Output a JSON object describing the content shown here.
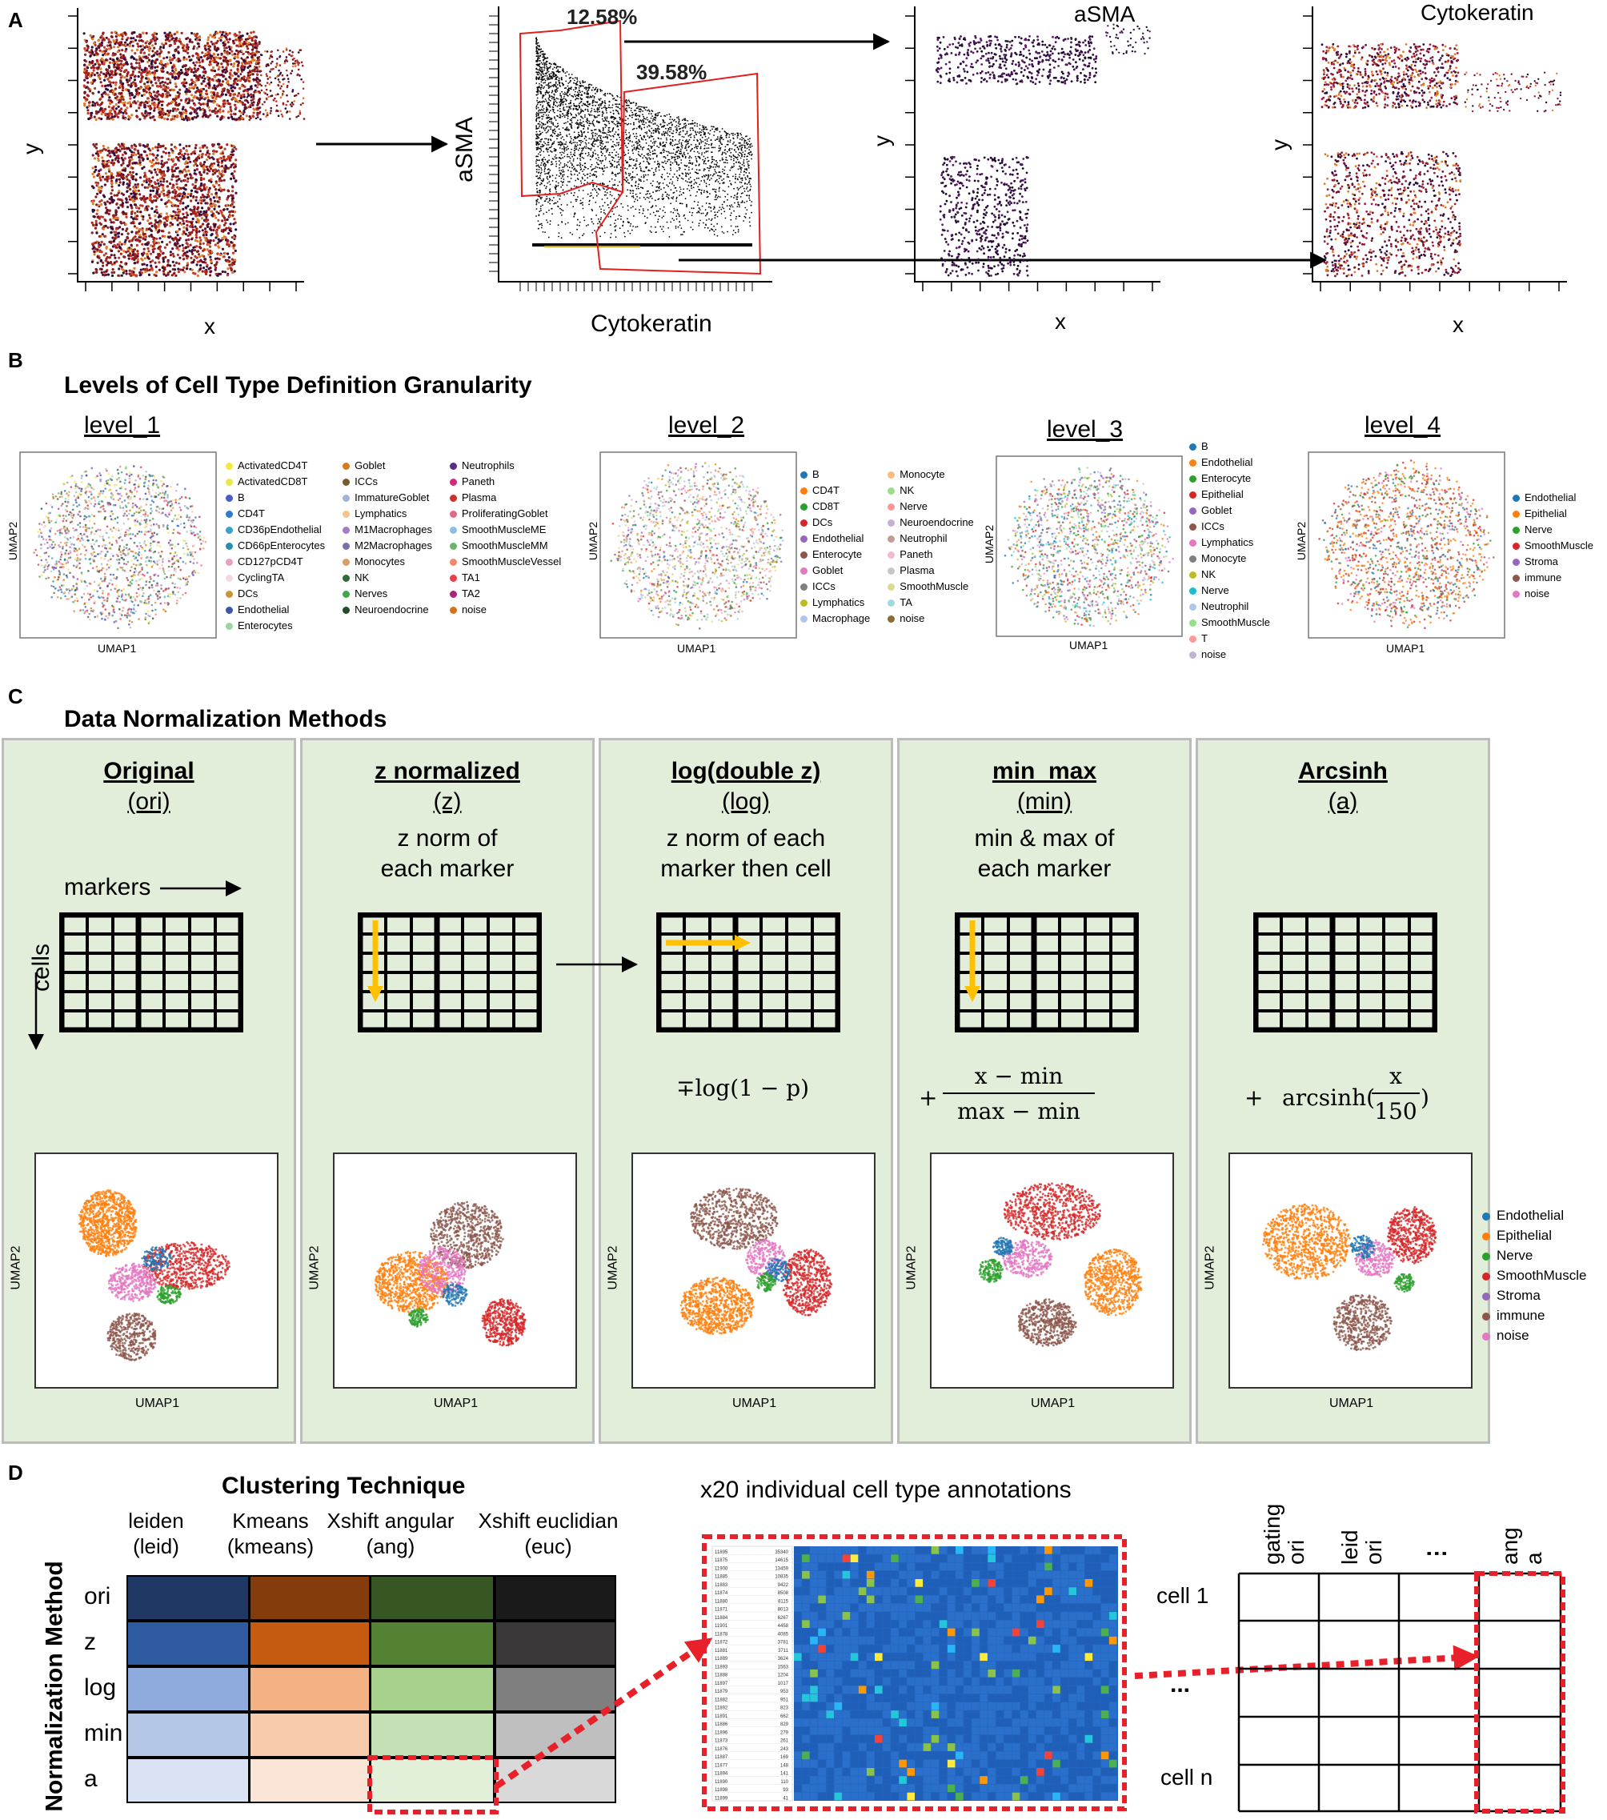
{
  "panel_a": {
    "label": "A",
    "plot1": {
      "xlabel": "x",
      "ylabel": "y"
    },
    "gate_plot": {
      "xlabel": "Cytokeratin",
      "ylabel": "aSMA",
      "gate1_pct": "12.58%",
      "gate2_pct": "39.58%"
    },
    "plot3": {
      "title": "aSMA",
      "xlabel": "x",
      "ylabel": "y"
    },
    "plot4": {
      "title": "Cytokeratin",
      "xlabel": "x",
      "ylabel": "y"
    }
  },
  "panel_b": {
    "label": "B",
    "title": "Levels of Cell Type Definition Granularity",
    "umap_xlabel": "UMAP1",
    "umap_ylabel": "UMAP2",
    "levels": [
      {
        "name": "level_1",
        "legend_cols": [
          [
            [
              "ActivatedCD4T",
              "#f5e642"
            ],
            [
              "ActivatedCD8T",
              "#e8e84a"
            ],
            [
              "B",
              "#4b5cc4"
            ],
            [
              "CD4T",
              "#2e7bd1"
            ],
            [
              "CD36pEndothelial",
              "#3aa0c8"
            ],
            [
              "CD66pEnterocytes",
              "#2a8fa8"
            ],
            [
              "CD127pCD4T",
              "#e99ec4"
            ],
            [
              "CyclingTA",
              "#f4d6e4"
            ],
            [
              "DCs",
              "#c8963c"
            ],
            [
              "Endothelial",
              "#3b56a8"
            ],
            [
              "Enterocytes",
              "#9fd2a4"
            ]
          ],
          [
            [
              "Goblet",
              "#d47b1f"
            ],
            [
              "ICCs",
              "#7a5a30"
            ],
            [
              "ImmatureGoblet",
              "#a2b3d6"
            ],
            [
              "Lymphatics",
              "#f3c58a"
            ],
            [
              "M1Macrophages",
              "#a47cc0"
            ],
            [
              "M2Macrophages",
              "#7a6fa8"
            ],
            [
              "Monocytes",
              "#d4a06a"
            ],
            [
              "NK",
              "#2f6b3a"
            ],
            [
              "Nerves",
              "#3fa64a"
            ],
            [
              "Neuroendocrine",
              "#1f4c2a"
            ]
          ],
          [
            [
              "Neutrophils",
              "#5a2d82"
            ],
            [
              "Paneth",
              "#d02a7a"
            ],
            [
              "Plasma",
              "#c7322e"
            ],
            [
              "ProliferatingGoblet",
              "#e06a8a"
            ],
            [
              "SmoothMuscleME",
              "#8fbfe0"
            ],
            [
              "SmoothMuscleMM",
              "#6bb36a"
            ],
            [
              "SmoothMuscleVessel",
              "#f08a70"
            ],
            [
              "TA1",
              "#e8414a"
            ],
            [
              "TA2",
              "#a8267a"
            ],
            [
              "noise",
              "#d4731e"
            ]
          ]
        ]
      },
      {
        "name": "level_2",
        "legend_cols": [
          [
            [
              "B",
              "#1f77b4"
            ],
            [
              "CD4T",
              "#ff7f0e"
            ],
            [
              "CD8T",
              "#2ca02c"
            ],
            [
              "DCs",
              "#d62728"
            ],
            [
              "Endothelial",
              "#9467bd"
            ],
            [
              "Enterocyte",
              "#8c564b"
            ],
            [
              "Goblet",
              "#e377c2"
            ],
            [
              "ICCs",
              "#7f7f7f"
            ],
            [
              "Lymphatics",
              "#bcbd22"
            ],
            [
              "Macrophage",
              "#aec7e8"
            ]
          ],
          [
            [
              "Monocyte",
              "#ffbb78"
            ],
            [
              "NK",
              "#98df8a"
            ],
            [
              "Nerve",
              "#ff9896"
            ],
            [
              "Neuroendocrine",
              "#c5b0d5"
            ],
            [
              "Neutrophil",
              "#c49c94"
            ],
            [
              "Paneth",
              "#f7b6d2"
            ],
            [
              "Plasma",
              "#c7c7c7"
            ],
            [
              "SmoothMuscle",
              "#dbdb8d"
            ],
            [
              "TA",
              "#9edae5"
            ],
            [
              "noise",
              "#8c6d31"
            ]
          ]
        ]
      },
      {
        "name": "level_3",
        "legend_cols": [
          [
            [
              "B",
              "#1f77b4"
            ],
            [
              "Endothelial",
              "#ff7f0e"
            ],
            [
              "Enterocyte",
              "#2ca02c"
            ],
            [
              "Epithelial",
              "#d62728"
            ],
            [
              "Goblet",
              "#9467bd"
            ],
            [
              "ICCs",
              "#8c564b"
            ],
            [
              "Lymphatics",
              "#e377c2"
            ],
            [
              "Monocyte",
              "#7f7f7f"
            ],
            [
              "NK",
              "#bcbd22"
            ],
            [
              "Nerve",
              "#17becf"
            ],
            [
              "Neutrophil",
              "#aec7e8"
            ],
            [
              "SmoothMuscle",
              "#98df8a"
            ],
            [
              "T",
              "#ff9896"
            ],
            [
              "noise",
              "#c5b0d5"
            ]
          ]
        ]
      },
      {
        "name": "level_4",
        "legend_cols": [
          [
            [
              "Endothelial",
              "#1f77b4"
            ],
            [
              "Epithelial",
              "#ff7f0e"
            ],
            [
              "Nerve",
              "#2ca02c"
            ],
            [
              "SmoothMuscle",
              "#d62728"
            ],
            [
              "Stroma",
              "#9467bd"
            ],
            [
              "immune",
              "#8c564b"
            ],
            [
              "noise",
              "#e377c2"
            ]
          ]
        ]
      }
    ]
  },
  "panel_c": {
    "label": "C",
    "title": "Data Normalization Methods",
    "umap_xlabel": "UMAP1",
    "umap_ylabel": "UMAP2",
    "markers_label": "markers",
    "cells_label": "cells",
    "methods": [
      {
        "name": "Original",
        "abbr": "(ori)",
        "desc1": "",
        "desc2": ""
      },
      {
        "name": "z normalized",
        "abbr": "(z)",
        "desc1": "z norm of",
        "desc2": "each marker"
      },
      {
        "name": "log(double z)",
        "abbr": "(log)",
        "desc1": "z norm of each",
        "desc2": "marker then cell"
      },
      {
        "name": "min_max",
        "abbr": "(min)",
        "desc1": "min & max of",
        "desc2": "each marker"
      },
      {
        "name": "Arcsinh",
        "abbr": "(a)",
        "desc1": "",
        "desc2": ""
      }
    ],
    "formulas": {
      "log": "∓log(1 − p)",
      "min_plus": "+",
      "min_num": "x − min",
      "min_den": "max − min",
      "a_plus": "+",
      "a_func": "arcsinh(",
      "a_num": "x",
      "a_den": "150",
      "a_close": ")"
    },
    "legend": [
      [
        "Endothelial",
        "#1f77b4"
      ],
      [
        "Epithelial",
        "#ff7f0e"
      ],
      [
        "Nerve",
        "#2ca02c"
      ],
      [
        "SmoothMuscle",
        "#d62728"
      ],
      [
        "Stroma",
        "#9467bd"
      ],
      [
        "immune",
        "#8c564b"
      ],
      [
        "noise",
        "#e377c2"
      ]
    ]
  },
  "panel_d": {
    "label": "D",
    "title": "Clustering Technique",
    "row_axis": "Normalization Method",
    "columns": [
      {
        "l1": "leiden",
        "l2": "(leid)"
      },
      {
        "l1": "Kmeans",
        "l2": "(kmeans)"
      },
      {
        "l1": "Xshift angular",
        "l2": "(ang)"
      },
      {
        "l1": "Xshift euclidian",
        "l2": "(euc)"
      }
    ],
    "rows": [
      "ori",
      "z",
      "log",
      "min",
      "a"
    ],
    "colors": [
      [
        "#1f3864",
        "#843c0c",
        "#375623",
        "#1a1a1a"
      ],
      [
        "#2e5aa0",
        "#c55a11",
        "#548235",
        "#3a3838"
      ],
      [
        "#8faadc",
        "#f4b183",
        "#a9d18e",
        "#7f7f7f"
      ],
      [
        "#b4c7e7",
        "#f8cbad",
        "#c5e0b4",
        "#bfbfbf"
      ],
      [
        "#dae3f3",
        "#fbe5d6",
        "#e2f0d9",
        "#d9d9d9"
      ]
    ],
    "annotations_title": "x20 individual cell type annotations",
    "heatmap_rows": [
      [
        "11895",
        "35340"
      ],
      [
        "11875",
        "14615"
      ],
      [
        "11900",
        "13459"
      ],
      [
        "11885",
        "10835"
      ],
      [
        "11883",
        "9422"
      ],
      [
        "11874",
        "8508"
      ],
      [
        "11880",
        "8115"
      ],
      [
        "11871",
        "8013"
      ],
      [
        "11884",
        "6267"
      ],
      [
        "11901",
        "4458"
      ],
      [
        "11878",
        "4085"
      ],
      [
        "11872",
        "3781"
      ],
      [
        "11881",
        "3711"
      ],
      [
        "11889",
        "3624"
      ],
      [
        "11893",
        "1563"
      ],
      [
        "11888",
        "1204"
      ],
      [
        "11897",
        "1017"
      ],
      [
        "11879",
        "953"
      ],
      [
        "11882",
        "951"
      ],
      [
        "11892",
        "823"
      ],
      [
        "11891",
        "662"
      ],
      [
        "11886",
        "829"
      ],
      [
        "11896",
        "279"
      ],
      [
        "11873",
        "261"
      ],
      [
        "11876",
        "243"
      ],
      [
        "11887",
        "169"
      ],
      [
        "11877",
        "148"
      ],
      [
        "11894",
        "141"
      ],
      [
        "11890",
        "110"
      ],
      [
        "11898",
        "93"
      ],
      [
        "11899",
        "41"
      ]
    ],
    "table_headers": [
      [
        "gating",
        "ori"
      ],
      [
        "leid",
        "ori"
      ],
      [
        "⋮",
        ""
      ],
      [
        "ang",
        "a"
      ]
    ],
    "cell_first": "cell 1",
    "cell_dots": "...",
    "cell_last": "cell n"
  }
}
